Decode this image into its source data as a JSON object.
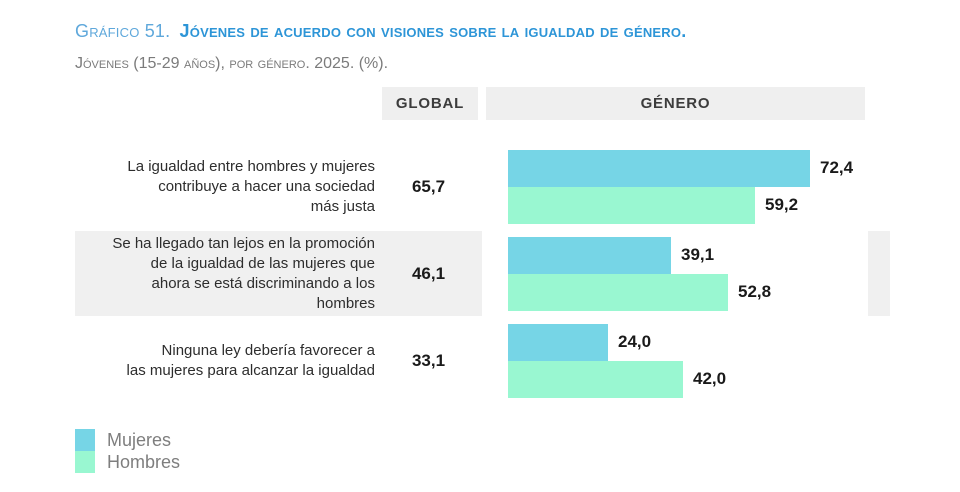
{
  "header": {
    "title_prefix": "Gráfico 51.",
    "title_main": "Jóvenes de acuerdo con visiones sobre la igualdad de género.",
    "subtitle": "Jóvenes (15-29 años), por género. 2025. (%)."
  },
  "table": {
    "global_header": "GLOBAL",
    "genero_header": "GÉNERO"
  },
  "legend": {
    "items": [
      {
        "label": "Mujeres",
        "color": "#76D5E6"
      },
      {
        "label": "Hombres",
        "color": "#99F7D1"
      }
    ]
  },
  "colors": {
    "title_prefix": "#5FA8DB",
    "title_main": "#2D95D7",
    "subtitle": "#7B7B7B",
    "header_bg": "#EFEFEF",
    "row_band": "#F0F0F0",
    "value_text": "#1A1A1A",
    "mujeres": "#76D5E6",
    "hombres": "#99F7D1"
  },
  "chart_data": {
    "type": "bar",
    "orientation": "horizontal",
    "title": "Gráfico 51. Jóvenes de acuerdo con visiones sobre la igualdad de género.",
    "subtitle": "Jóvenes (15-29 años), por género. 2025. (%).",
    "categories": [
      "La igualdad entre hombres y mujeres\ncontribuye a hacer una sociedad\nmás justa",
      "Se ha llegado tan lejos en la promoción\nde la igualdad de las mujeres que\nahora se está discriminando a los\nhombres",
      "Ninguna ley debería favorecer a\nlas mujeres para alcanzar la igualdad"
    ],
    "global_values": [
      65.7,
      46.1,
      33.1
    ],
    "global_labels": [
      "65,7",
      "46,1",
      "33,1"
    ],
    "series": [
      {
        "name": "Mujeres",
        "color": "#76D5E6",
        "values": [
          72.4,
          39.1,
          24.0
        ],
        "labels": [
          "72,4",
          "39,1",
          "24,0"
        ]
      },
      {
        "name": "Hombres",
        "color": "#99F7D1",
        "values": [
          59.2,
          52.8,
          42.0
        ],
        "labels": [
          "59,2",
          "52,8",
          "42,0"
        ]
      }
    ],
    "xlim": [
      0,
      86
    ],
    "grid": false,
    "legend_position": "bottom-left",
    "value_labels": "outside-end",
    "highlighted_row_index": 1
  }
}
